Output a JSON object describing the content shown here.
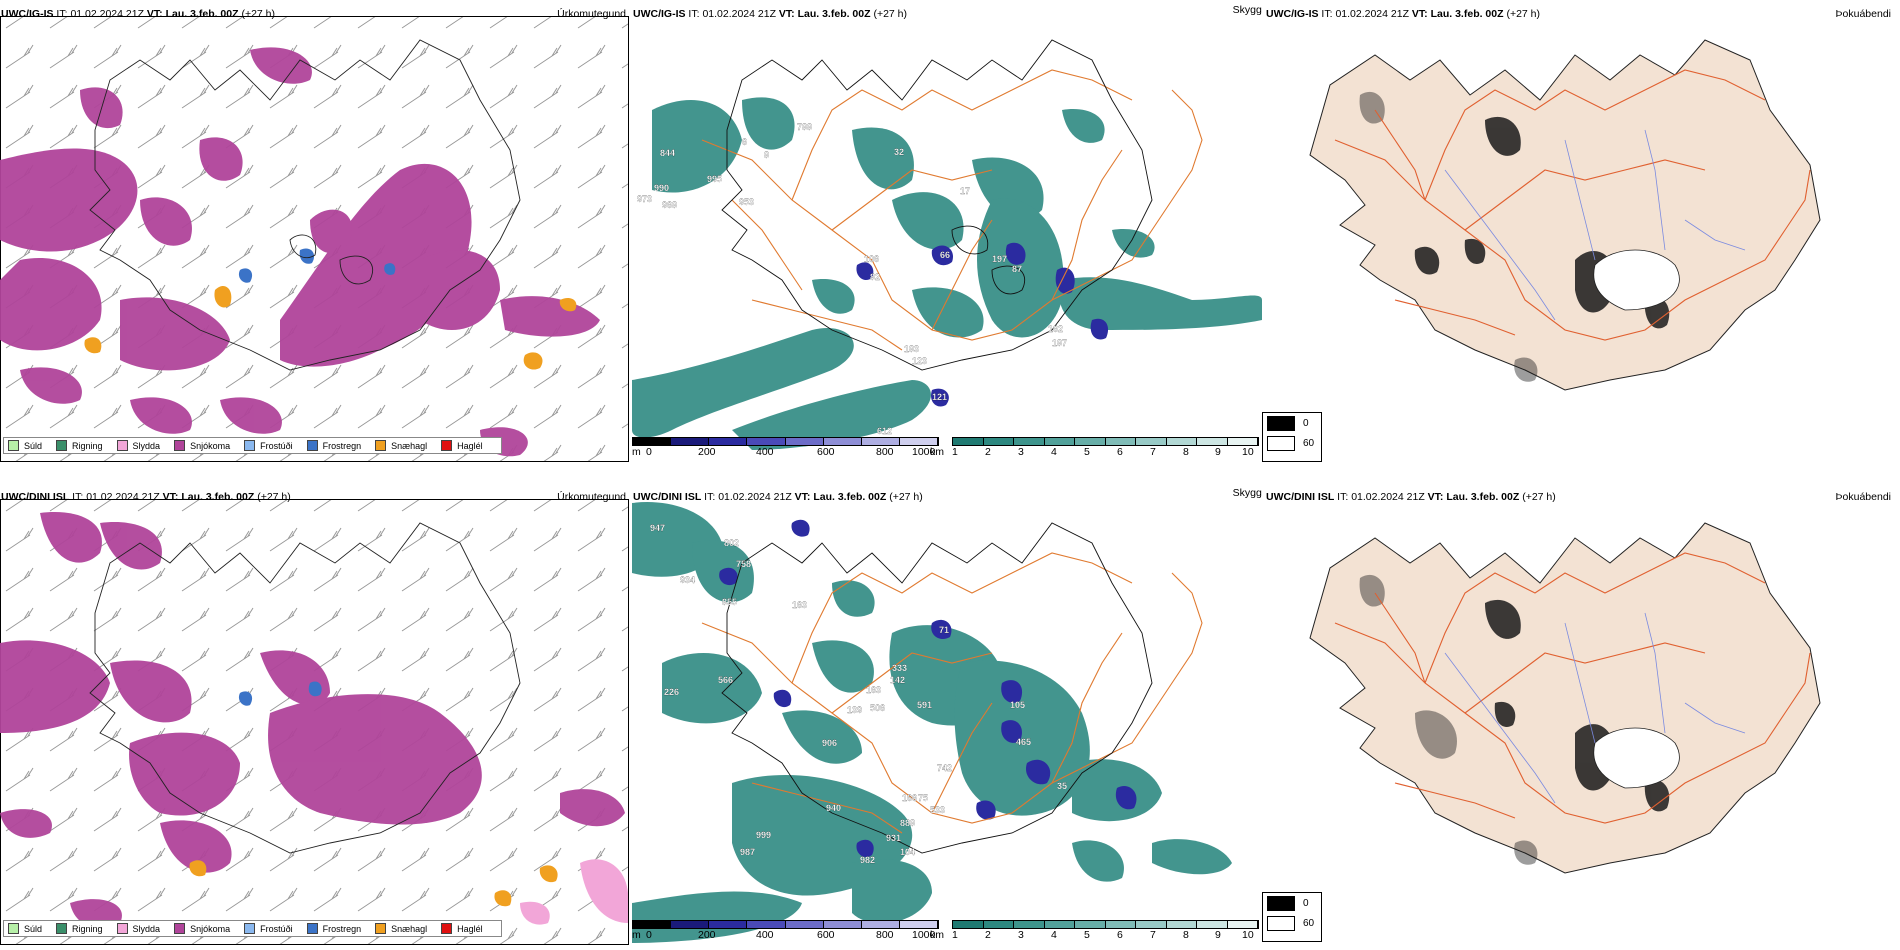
{
  "rows": [
    {
      "model": "UWC/IG-IS",
      "it_label": "IT:",
      "it_value": "01.02.2024 21Z",
      "vt_label": "VT:",
      "vt_value": "Lau. 3.feb. 00Z",
      "lead": "(+27 h)",
      "precip_title": "Úrkomutegund",
      "vis_title": "Skyggni",
      "fog_title": "Þokuábendi",
      "vis_labels": [
        "788",
        "32",
        "6",
        "8",
        "844",
        "995",
        "990",
        "968",
        "973",
        "953",
        "66",
        "87",
        "197",
        "106",
        "82",
        "162",
        "187",
        "183",
        "123",
        "121",
        "612",
        "17"
      ],
      "vis_legend": [
        "0",
        "60"
      ]
    },
    {
      "model": "UWC/DINI ISL",
      "it_label": "IT:",
      "it_value": "01.02.2024 21Z",
      "vt_label": "VT:",
      "vt_value": "Lau. 3.feb. 00Z",
      "lead": "(+27 h)",
      "precip_title": "Úrkomutegund",
      "vis_title": "Skyggni",
      "fog_title": "Þokuábendi",
      "vis_labels": [
        "947",
        "802",
        "934",
        "855",
        "758",
        "163",
        "566",
        "226",
        "333",
        "71",
        "142",
        "163",
        "506",
        "139",
        "591",
        "105",
        "465",
        "906",
        "940",
        "533",
        "166",
        "888",
        "931",
        "104",
        "999",
        "987",
        "982",
        "35",
        "75",
        "742"
      ],
      "vis_legend": [
        "0",
        "60"
      ]
    }
  ],
  "precip_legend": [
    {
      "label": "Súld",
      "color": "#b7f0a8"
    },
    {
      "label": "Rigning",
      "color": "#3a8f6a"
    },
    {
      "label": "Slydda",
      "color": "#f2a6d8"
    },
    {
      "label": "Snjókoma",
      "color": "#b0449a"
    },
    {
      "label": "Frostúði",
      "color": "#8ab8ef"
    },
    {
      "label": "Frostregn",
      "color": "#3b73c7"
    },
    {
      "label": "Snæhagl",
      "color": "#f0a020"
    },
    {
      "label": "Haglél",
      "color": "#e01010"
    }
  ],
  "height_bar": {
    "unit": "m",
    "ticks": [
      "0",
      "200",
      "400",
      "600",
      "800",
      "1000"
    ],
    "colors": [
      "#000000",
      "#1a1a7a",
      "#2b2ba0",
      "#4a4ab8",
      "#6c6cc8",
      "#8e8ed6",
      "#aeaee2",
      "#cfcfee"
    ]
  },
  "vis_bar": {
    "unit": "km",
    "ticks": [
      "1",
      "2",
      "3",
      "4",
      "5",
      "6",
      "7",
      "8",
      "9",
      "10"
    ],
    "colors": [
      "#1f7a72",
      "#2d8880",
      "#3e948c",
      "#52a19a",
      "#68aea8",
      "#80bcb7",
      "#98cac6",
      "#b2d8d4",
      "#cde6e3",
      "#e8f4f2"
    ]
  },
  "colors": {
    "snow": "#b0449a",
    "vis": "#2f8a82",
    "land": "#f3e2d3",
    "roads": "#e06030",
    "rivers": "#7a8ae0"
  }
}
